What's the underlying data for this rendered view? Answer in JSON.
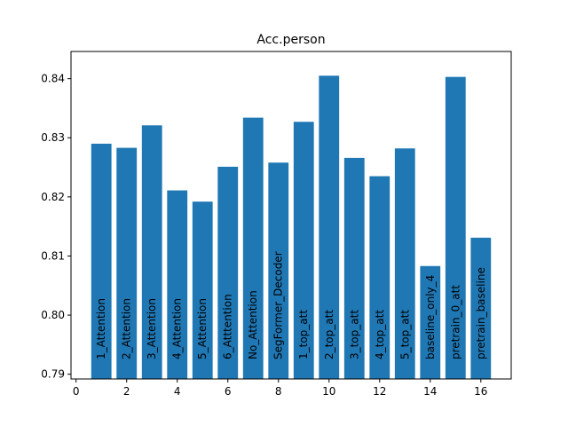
{
  "chart_data": {
    "type": "bar",
    "title": "Acc.person",
    "xlabel": "",
    "ylabel": "",
    "x": [
      1,
      2,
      3,
      4,
      5,
      6,
      7,
      8,
      9,
      10,
      11,
      12,
      13,
      14,
      15,
      16
    ],
    "categories": [
      "1_Attention",
      "2_Attention",
      "3_Attention",
      "4_Attention",
      "5_Attention",
      "6_Atttention",
      "No_Attention",
      "SegFormer_Decoder",
      "1_top_att",
      "2_top_att",
      "3_top_att",
      "4_top_att",
      "5_top_att",
      "baseline_only_4",
      "pretrain_0_att",
      "pretrain_baseline"
    ],
    "values": [
      0.829,
      0.8283,
      0.8321,
      0.8211,
      0.8192,
      0.8251,
      0.8334,
      0.8258,
      0.8327,
      0.8405,
      0.8266,
      0.8235,
      0.8282,
      0.8083,
      0.8403,
      0.8131
    ],
    "xlim": [
      -0.2,
      17.2
    ],
    "ylim": [
      0.7892,
      0.8446
    ],
    "xticks": [
      "0",
      "2",
      "4",
      "6",
      "8",
      "10",
      "12",
      "14",
      "16"
    ],
    "yticks": [
      "0.79",
      "0.80",
      "0.81",
      "0.82",
      "0.83",
      "0.84"
    ],
    "bar_color": "#1f77b4",
    "grid": false,
    "legend": "none"
  }
}
